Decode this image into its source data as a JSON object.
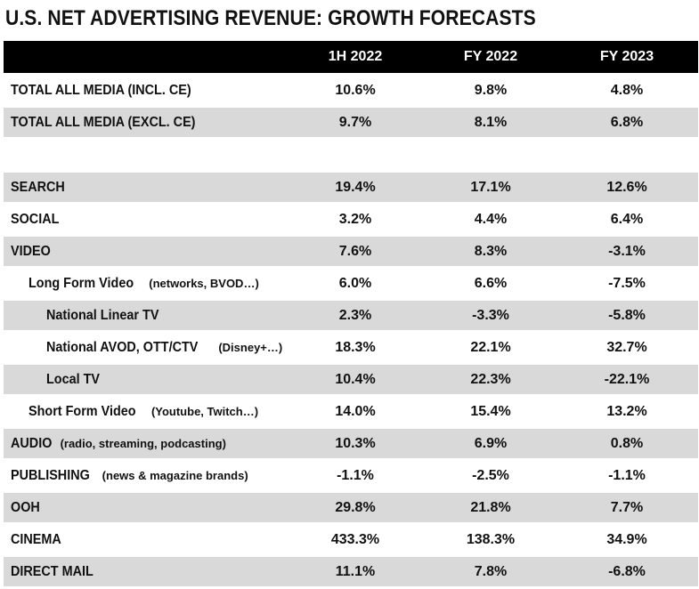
{
  "title": "U.S. NET ADVERTISING REVENUE: GROWTH FORECASTS",
  "colors": {
    "header_bg": "#000000",
    "header_text": "#ffffff",
    "shade": "#d9d9d9",
    "plain": "#ffffff"
  },
  "chart_data": {
    "type": "table",
    "title": "U.S. NET ADVERTISING REVENUE: GROWTH FORECASTS",
    "columns": [
      "",
      "1H 2022",
      "FY 2022",
      "FY 2023"
    ],
    "rows": [
      {
        "label": "TOTAL ALL MEDIA (INCL. CE)",
        "note": "",
        "indent": 0,
        "shade": false,
        "values": [
          "10.6%",
          "9.8%",
          "4.8%"
        ]
      },
      {
        "label": "TOTAL ALL MEDIA (EXCL. CE)",
        "note": "",
        "indent": 0,
        "shade": true,
        "values": [
          "9.7%",
          "8.1%",
          "6.8%"
        ]
      },
      {
        "label": "SEARCH",
        "note": "",
        "indent": 0,
        "shade": true,
        "values": [
          "19.4%",
          "17.1%",
          "12.6%"
        ]
      },
      {
        "label": "SOCIAL",
        "note": "",
        "indent": 0,
        "shade": false,
        "values": [
          "3.2%",
          "4.4%",
          "6.4%"
        ]
      },
      {
        "label": "VIDEO",
        "note": "",
        "indent": 0,
        "shade": true,
        "values": [
          "7.6%",
          "8.3%",
          "-3.1%"
        ]
      },
      {
        "label": "Long Form Video",
        "note": "(networks, BVOD…)",
        "indent": 1,
        "shade": false,
        "values": [
          "6.0%",
          "6.6%",
          "-7.5%"
        ]
      },
      {
        "label": "National Linear TV",
        "note": "",
        "indent": 2,
        "shade": true,
        "values": [
          "2.3%",
          "-3.3%",
          "-5.8%"
        ]
      },
      {
        "label": "National AVOD, OTT/CTV",
        "note": "(Disney+…)",
        "indent": 2,
        "shade": false,
        "values": [
          "18.3%",
          "22.1%",
          "32.7%"
        ]
      },
      {
        "label": "Local TV",
        "note": "",
        "indent": 2,
        "shade": true,
        "values": [
          "10.4%",
          "22.3%",
          "-22.1%"
        ]
      },
      {
        "label": "Short Form Video",
        "note": "(Youtube, Twitch…)",
        "indent": 1,
        "shade": false,
        "values": [
          "14.0%",
          "15.4%",
          "13.2%"
        ]
      },
      {
        "label": "AUDIO",
        "note": "(radio, streaming, podcasting)",
        "indent": 0,
        "shade": true,
        "values": [
          "10.3%",
          "6.9%",
          "0.8%"
        ]
      },
      {
        "label": "PUBLISHING",
        "note": "(news & magazine brands)",
        "indent": 0,
        "shade": false,
        "values": [
          "-1.1%",
          "-2.5%",
          "-1.1%"
        ]
      },
      {
        "label": "OOH",
        "note": "",
        "indent": 0,
        "shade": true,
        "values": [
          "29.8%",
          "21.8%",
          "7.7%"
        ]
      },
      {
        "label": "CINEMA",
        "note": "",
        "indent": 0,
        "shade": false,
        "values": [
          "433.3%",
          "138.3%",
          "34.9%"
        ]
      },
      {
        "label": "DIRECT MAIL",
        "note": "",
        "indent": 0,
        "shade": true,
        "values": [
          "11.1%",
          "7.8%",
          "-6.8%"
        ]
      }
    ]
  }
}
